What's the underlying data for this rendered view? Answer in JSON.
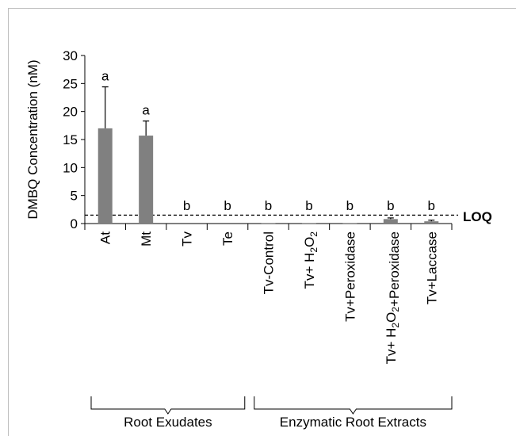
{
  "chart_data": {
    "type": "bar",
    "ylabel": "DMBQ Concentration (nM)",
    "ylim": [
      0,
      30
    ],
    "yticks": [
      0,
      5,
      10,
      15,
      20,
      25,
      30
    ],
    "categories": [
      "At",
      "Mt",
      "Tv",
      "Te",
      "Tv-Control",
      "Tv+ H2O2",
      "Tv+Peroxidase",
      "Tv+ H2O2+Peroxidase",
      "Tv+Laccase"
    ],
    "values": [
      17.0,
      15.7,
      0.0,
      0.0,
      0.1,
      0.1,
      0.1,
      0.8,
      0.4
    ],
    "errors": [
      7.4,
      2.6,
      0.0,
      0.0,
      0.0,
      0.0,
      0.0,
      0.2,
      0.2
    ],
    "significance_letters": [
      "a",
      "a",
      "b",
      "b",
      "b",
      "b",
      "b",
      "b",
      "b"
    ],
    "loq_value": 1.5,
    "loq_label": "LOQ",
    "bar_color": "#808080",
    "groups": [
      {
        "label": "Root Exudates",
        "start": 0,
        "end": 3
      },
      {
        "label": "Enzymatic Root Extracts",
        "start": 4,
        "end": 8
      }
    ],
    "grid": false
  }
}
